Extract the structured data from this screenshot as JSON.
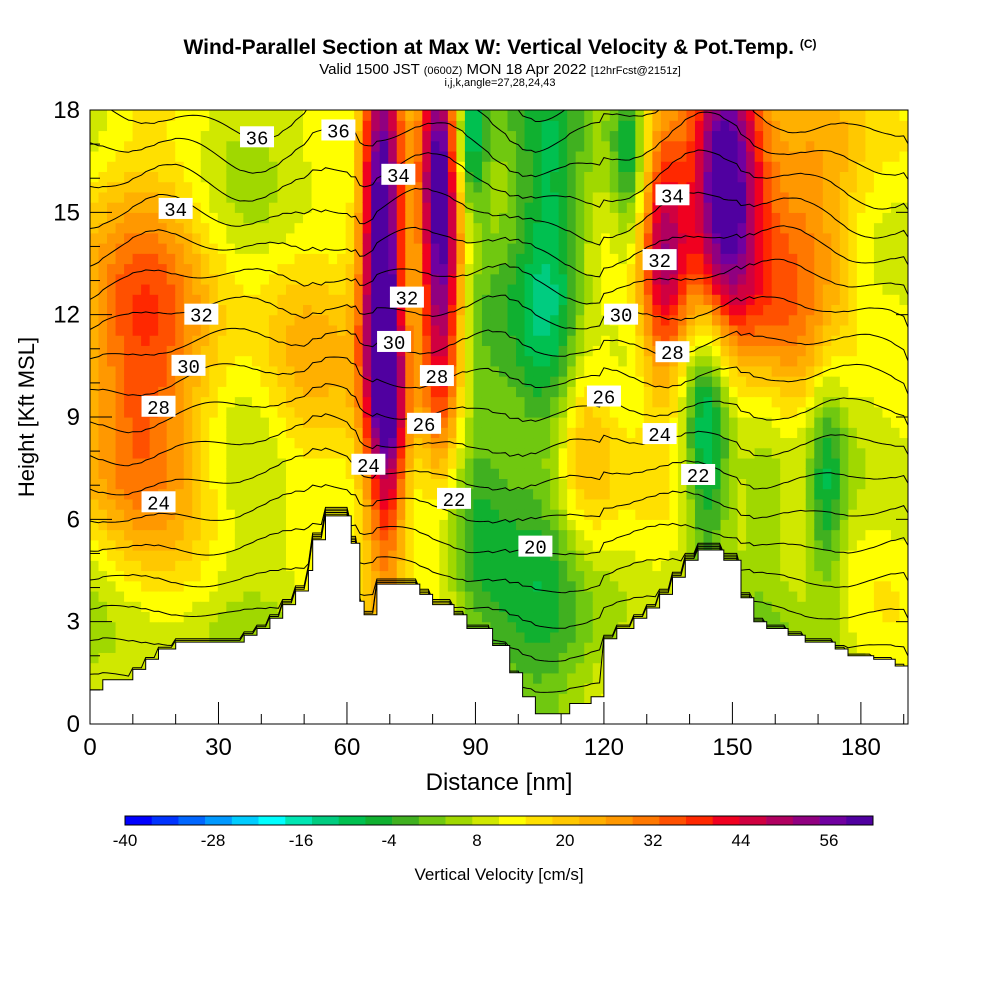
{
  "header": {
    "title": "Wind-Parallel Section at Max W: Vertical Velocity & Pot.Temp.",
    "copyright": "(C)",
    "valid_prefix": "Valid 1500 JST",
    "valid_utc": "(0600Z)",
    "valid_date": "MON 18 Apr 2022",
    "forecast": "[12hrFcst@2151z]",
    "indices": "i,j,k,angle=27,28,24,43"
  },
  "chart_data": {
    "type": "heatmap",
    "xlabel": "Distance [nm]",
    "ylabel": "Height [Kft MSL]",
    "xlim": [
      0,
      191
    ],
    "ylim": [
      0,
      18
    ],
    "x_ticks": [
      0,
      30,
      60,
      90,
      120,
      150,
      180
    ],
    "y_ticks": [
      0,
      3,
      6,
      9,
      12,
      15,
      18
    ],
    "colorbar": {
      "label": "Vertical Velocity [cm/s]",
      "tick_values": [
        -40,
        -28,
        -16,
        -4,
        8,
        20,
        32,
        44,
        56
      ],
      "range": [
        -40,
        62
      ],
      "colors": [
        "#0000ff",
        "#0033ff",
        "#0066ff",
        "#0099ff",
        "#00ccff",
        "#00ffff",
        "#00e6b3",
        "#00cc80",
        "#00c050",
        "#10b030",
        "#40b020",
        "#70c810",
        "#a0d800",
        "#d0e800",
        "#ffff00",
        "#ffe000",
        "#ffc800",
        "#ffb000",
        "#ff9800",
        "#ff7800",
        "#ff5000",
        "#ff2800",
        "#f00020",
        "#d00040",
        "#b00060",
        "#900080",
        "#7000a0",
        "#5000a0"
      ]
    },
    "terrain": [
      [
        0,
        1
      ],
      [
        3,
        1
      ],
      [
        3,
        1.3
      ],
      [
        10,
        1.3
      ],
      [
        10,
        1.6
      ],
      [
        13,
        1.6
      ],
      [
        13,
        1.9
      ],
      [
        16,
        1.9
      ],
      [
        16,
        2.2
      ],
      [
        20,
        2.2
      ],
      [
        20,
        2.4
      ],
      [
        36,
        2.4
      ],
      [
        36,
        2.6
      ],
      [
        39,
        2.6
      ],
      [
        39,
        2.8
      ],
      [
        42,
        2.8
      ],
      [
        42,
        3.1
      ],
      [
        45,
        3.1
      ],
      [
        45,
        3.5
      ],
      [
        48,
        3.5
      ],
      [
        48,
        3.9
      ],
      [
        51,
        3.9
      ],
      [
        51,
        4.5
      ],
      [
        52,
        4.5
      ],
      [
        52,
        5.4
      ],
      [
        55,
        5.4
      ],
      [
        55,
        6.1
      ],
      [
        61,
        6.1
      ],
      [
        61,
        5.3
      ],
      [
        63,
        5.3
      ],
      [
        63,
        3.6
      ],
      [
        64,
        3.6
      ],
      [
        64,
        3.2
      ],
      [
        67,
        3.2
      ],
      [
        67,
        4.1
      ],
      [
        77,
        4.1
      ],
      [
        77,
        3.8
      ],
      [
        80,
        3.8
      ],
      [
        80,
        3.5
      ],
      [
        85,
        3.5
      ],
      [
        85,
        3.2
      ],
      [
        88,
        3.2
      ],
      [
        88,
        2.8
      ],
      [
        94,
        2.8
      ],
      [
        94,
        2.3
      ],
      [
        98,
        2.3
      ],
      [
        98,
        1.5
      ],
      [
        101,
        1.5
      ],
      [
        101,
        0.8
      ],
      [
        104,
        0.8
      ],
      [
        104,
        0.3
      ],
      [
        112,
        0.3
      ],
      [
        112,
        0.6
      ],
      [
        117,
        0.6
      ],
      [
        117,
        0.8
      ],
      [
        120,
        0.8
      ],
      [
        120,
        2.5
      ],
      [
        123,
        2.5
      ],
      [
        123,
        2.8
      ],
      [
        127,
        2.8
      ],
      [
        127,
        3.1
      ],
      [
        130,
        3.1
      ],
      [
        130,
        3.4
      ],
      [
        133,
        3.4
      ],
      [
        133,
        3.8
      ],
      [
        136,
        3.8
      ],
      [
        136,
        4.3
      ],
      [
        139,
        4.3
      ],
      [
        139,
        4.8
      ],
      [
        142,
        4.8
      ],
      [
        142,
        5.1
      ],
      [
        148,
        5.1
      ],
      [
        148,
        4.8
      ],
      [
        152,
        4.8
      ],
      [
        152,
        3.7
      ],
      [
        155,
        3.7
      ],
      [
        155,
        3.0
      ],
      [
        158,
        3.0
      ],
      [
        158,
        2.8
      ],
      [
        163,
        2.8
      ],
      [
        163,
        2.6
      ],
      [
        167,
        2.6
      ],
      [
        167,
        2.4
      ],
      [
        174,
        2.4
      ],
      [
        174,
        2.2
      ],
      [
        177,
        2.2
      ],
      [
        177,
        2.0
      ],
      [
        183,
        2.0
      ],
      [
        183,
        1.9
      ],
      [
        188,
        1.9
      ],
      [
        188,
        1.7
      ],
      [
        191,
        1.7
      ],
      [
        191,
        0
      ]
    ],
    "w_features": [
      {
        "x": 12,
        "z": 10.5,
        "sx": 12,
        "sz": 4,
        "w": 26
      },
      {
        "x": 50,
        "z": 10.5,
        "sx": 9,
        "sz": 4,
        "w": 16
      },
      {
        "x": 68,
        "z": 14,
        "sx": 3.5,
        "sz": 5,
        "w": 52
      },
      {
        "x": 70,
        "z": 9,
        "sx": 3,
        "sz": 3,
        "w": 24
      },
      {
        "x": 82,
        "z": 15,
        "sx": 3.5,
        "sz": 4.5,
        "w": 56
      },
      {
        "x": 88,
        "z": 17,
        "sx": 3,
        "sz": 1.5,
        "w": -26
      },
      {
        "x": 62,
        "z": 17,
        "sx": 3,
        "sz": 1.5,
        "w": -6
      },
      {
        "x": 108,
        "z": 13.5,
        "sx": 6,
        "sz": 4,
        "w": -18
      },
      {
        "x": 107,
        "z": 3,
        "sx": 10,
        "sz": 2.2,
        "w": -10
      },
      {
        "x": 90,
        "z": 7,
        "sx": 5,
        "sz": 3.5,
        "w": -8
      },
      {
        "x": 126,
        "z": 16.5,
        "sx": 3,
        "sz": 2,
        "w": -18
      },
      {
        "x": 148,
        "z": 16,
        "sx": 6,
        "sz": 3,
        "w": 58
      },
      {
        "x": 134,
        "z": 14,
        "sx": 4,
        "sz": 3,
        "w": 34
      },
      {
        "x": 144,
        "z": 8.5,
        "sx": 3.5,
        "sz": 3,
        "w": -20
      },
      {
        "x": 158,
        "z": 7.5,
        "sx": 4,
        "sz": 3,
        "w": -6
      },
      {
        "x": 172,
        "z": 7,
        "sx": 3,
        "sz": 2.5,
        "w": -16
      },
      {
        "x": 180,
        "z": 11.5,
        "sx": 5,
        "sz": 3,
        "w": -4
      },
      {
        "x": 160,
        "z": 13,
        "sx": 8,
        "sz": 4,
        "w": 24
      },
      {
        "x": 172,
        "z": 15,
        "sx": 7,
        "sz": 3,
        "w": 14
      },
      {
        "x": 40,
        "z": 6,
        "sx": 10,
        "sz": 2,
        "w": -2
      },
      {
        "x": 8,
        "z": 3,
        "sx": 8,
        "sz": 2,
        "w": -4
      },
      {
        "x": 115,
        "z": 8.5,
        "sx": 5,
        "sz": 3,
        "w": 14
      }
    ],
    "theta_levels": [
      18,
      19,
      20,
      21,
      22,
      23,
      24,
      25,
      26,
      27,
      28,
      29,
      30,
      31,
      32,
      33,
      34,
      35,
      36,
      37
    ],
    "theta_labels": [
      {
        "text": "36",
        "x": 39,
        "z": 17.2
      },
      {
        "text": "36",
        "x": 58,
        "z": 17.4
      },
      {
        "text": "34",
        "x": 20,
        "z": 15.1
      },
      {
        "text": "34",
        "x": 72,
        "z": 16.1
      },
      {
        "text": "34",
        "x": 136,
        "z": 15.5
      },
      {
        "text": "32",
        "x": 26,
        "z": 12.0
      },
      {
        "text": "32",
        "x": 74,
        "z": 12.5
      },
      {
        "text": "32",
        "x": 133,
        "z": 13.6
      },
      {
        "text": "30",
        "x": 23,
        "z": 10.5
      },
      {
        "text": "30",
        "x": 71,
        "z": 11.2
      },
      {
        "text": "30",
        "x": 124,
        "z": 12.0
      },
      {
        "text": "28",
        "x": 16,
        "z": 9.3
      },
      {
        "text": "28",
        "x": 81,
        "z": 10.2
      },
      {
        "text": "28",
        "x": 136,
        "z": 10.9
      },
      {
        "text": "26",
        "x": 78,
        "z": 8.8
      },
      {
        "text": "26",
        "x": 120,
        "z": 9.6
      },
      {
        "text": "24",
        "x": 16,
        "z": 6.5
      },
      {
        "text": "24",
        "x": 65,
        "z": 7.6
      },
      {
        "text": "24",
        "x": 133,
        "z": 8.5
      },
      {
        "text": "22",
        "x": 85,
        "z": 6.6
      },
      {
        "text": "22",
        "x": 142,
        "z": 7.3
      },
      {
        "text": "20",
        "x": 104,
        "z": 5.2
      }
    ]
  }
}
